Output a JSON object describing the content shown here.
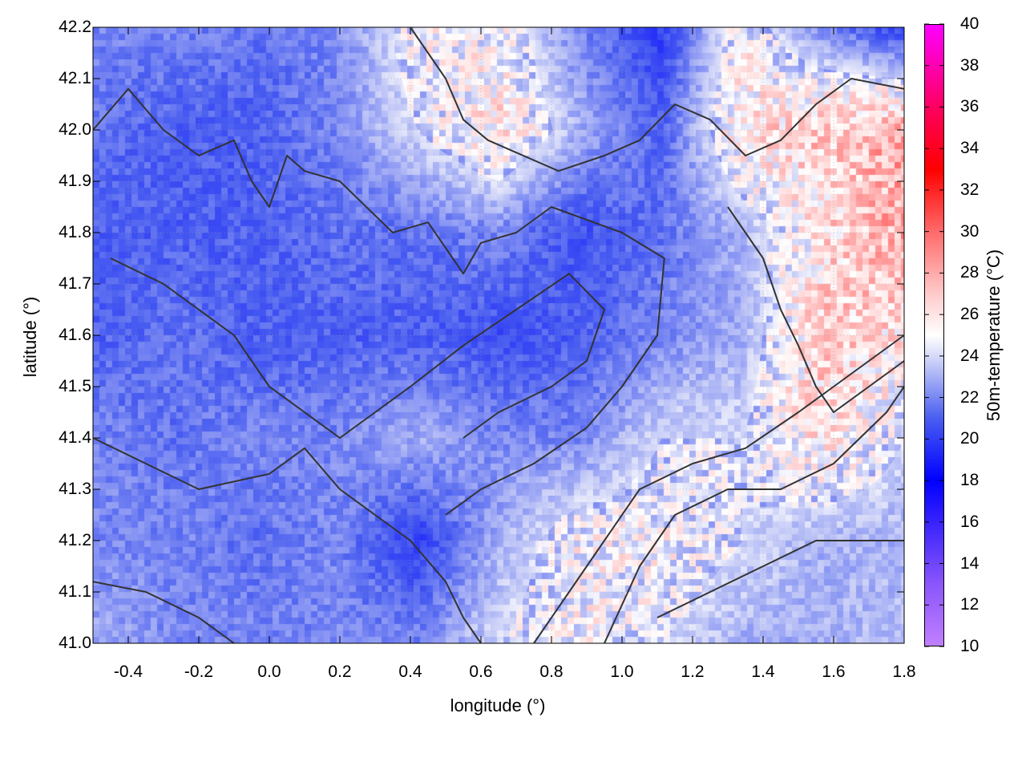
{
  "chart_data": {
    "type": "heatmap",
    "xlabel": "longitude (°)",
    "ylabel": "latitude (°)",
    "colorbar_label": "50m-temperature (°C)",
    "xlim": [
      -0.5,
      1.8
    ],
    "ylim": [
      41.0,
      42.2
    ],
    "clim": [
      10,
      40
    ],
    "grid": true,
    "xticks": [
      "-0.4",
      "-0.2",
      "0.0",
      "0.2",
      "0.4",
      "0.6",
      "0.8",
      "1.0",
      "1.2",
      "1.4",
      "1.6",
      "1.8"
    ],
    "xtick_values": [
      -0.4,
      -0.2,
      0,
      0.2,
      0.4,
      0.6,
      0.8,
      1.0,
      1.2,
      1.4,
      1.6,
      1.8
    ],
    "yticks": [
      "41.0",
      "41.1",
      "41.2",
      "41.3",
      "41.4",
      "41.5",
      "41.6",
      "41.7",
      "41.8",
      "41.9",
      "42.0",
      "42.1",
      "42.2"
    ],
    "ytick_values": [
      41.0,
      41.1,
      41.2,
      41.3,
      41.4,
      41.5,
      41.6,
      41.7,
      41.8,
      41.9,
      42.0,
      42.1,
      42.2
    ],
    "cticks": [
      "10",
      "12",
      "14",
      "16",
      "18",
      "20",
      "22",
      "24",
      "26",
      "28",
      "30",
      "32",
      "34",
      "36",
      "38",
      "40"
    ],
    "ctick_values": [
      10,
      12,
      14,
      16,
      18,
      20,
      22,
      24,
      26,
      28,
      30,
      32,
      34,
      36,
      38,
      40
    ],
    "colormap": [
      [
        10,
        "#c080ff"
      ],
      [
        13,
        "#8a55fb"
      ],
      [
        18,
        "#0000ff"
      ],
      [
        21,
        "#4a5ef0"
      ],
      [
        24,
        "#d6daf8"
      ],
      [
        25,
        "#ffffff"
      ],
      [
        27,
        "#ffcaca"
      ],
      [
        30,
        "#ff6a6a"
      ],
      [
        33,
        "#ff0000"
      ],
      [
        36,
        "#ff0060"
      ],
      [
        40,
        "#ff00ff"
      ]
    ],
    "grid_lon": [
      -0.5,
      -0.27,
      -0.04,
      0.19,
      0.42,
      0.65,
      0.88,
      1.11,
      1.34,
      1.57,
      1.8
    ],
    "grid_lat": [
      42.2,
      42.0,
      41.8,
      41.6,
      41.4,
      41.2,
      41.0
    ],
    "values": [
      [
        22,
        22,
        21.5,
        22,
        25,
        25,
        22,
        20,
        25,
        22,
        20
      ],
      [
        21.5,
        21,
        21,
        22,
        24,
        26,
        23,
        21,
        26,
        27,
        28
      ],
      [
        21,
        21,
        21,
        21.5,
        21.5,
        22,
        20.5,
        21.5,
        23,
        26,
        28
      ],
      [
        21,
        21.5,
        21,
        21,
        21,
        20.5,
        21,
        22,
        23,
        27,
        26
      ],
      [
        22,
        21.5,
        22,
        22,
        23,
        22,
        22,
        24,
        24,
        26,
        24
      ],
      [
        22,
        22,
        21.5,
        22,
        20,
        23,
        25,
        25,
        24,
        23,
        23
      ],
      [
        23,
        22,
        22,
        22,
        22,
        24,
        25,
        24,
        23,
        23,
        23.5
      ]
    ],
    "contours": [
      [
        [
          -0.5,
          42.0
        ],
        [
          -0.4,
          42.08
        ],
        [
          -0.3,
          42.0
        ],
        [
          -0.2,
          41.95
        ],
        [
          -0.1,
          41.98
        ],
        [
          -0.05,
          41.9
        ],
        [
          0.0,
          41.85
        ],
        [
          0.05,
          41.95
        ],
        [
          0.1,
          41.92
        ],
        [
          0.2,
          41.9
        ],
        [
          0.35,
          41.8
        ],
        [
          0.45,
          41.82
        ],
        [
          0.55,
          41.72
        ],
        [
          0.6,
          41.78
        ],
        [
          0.7,
          41.8
        ],
        [
          0.8,
          41.85
        ],
        [
          1.0,
          41.8
        ],
        [
          1.12,
          41.75
        ],
        [
          1.1,
          41.6
        ],
        [
          1.0,
          41.5
        ],
        [
          0.9,
          41.42
        ],
        [
          0.75,
          41.35
        ],
        [
          0.6,
          41.3
        ],
        [
          0.5,
          41.25
        ]
      ],
      [
        [
          -0.45,
          41.75
        ],
        [
          -0.3,
          41.7
        ],
        [
          -0.2,
          41.65
        ],
        [
          -0.1,
          41.6
        ],
        [
          0.0,
          41.5
        ],
        [
          0.1,
          41.45
        ],
        [
          0.2,
          41.4
        ],
        [
          0.3,
          41.45
        ],
        [
          0.4,
          41.5
        ],
        [
          0.55,
          41.58
        ],
        [
          0.7,
          41.65
        ],
        [
          0.85,
          41.72
        ],
        [
          0.95,
          41.65
        ],
        [
          0.9,
          41.55
        ],
        [
          0.8,
          41.5
        ],
        [
          0.65,
          41.45
        ],
        [
          0.55,
          41.4
        ]
      ],
      [
        [
          -0.5,
          41.4
        ],
        [
          -0.35,
          41.35
        ],
        [
          -0.2,
          41.3
        ],
        [
          0.0,
          41.33
        ],
        [
          0.1,
          41.38
        ],
        [
          0.2,
          41.3
        ],
        [
          0.3,
          41.25
        ],
        [
          0.4,
          41.2
        ],
        [
          0.5,
          41.12
        ],
        [
          0.55,
          41.05
        ],
        [
          0.6,
          41.0
        ]
      ],
      [
        [
          -0.5,
          41.12
        ],
        [
          -0.35,
          41.1
        ],
        [
          -0.2,
          41.05
        ],
        [
          -0.1,
          41.0
        ]
      ],
      [
        [
          0.75,
          41.0
        ],
        [
          0.85,
          41.1
        ],
        [
          0.95,
          41.2
        ],
        [
          1.05,
          41.3
        ],
        [
          1.2,
          41.35
        ],
        [
          1.35,
          41.38
        ],
        [
          1.5,
          41.45
        ],
        [
          1.6,
          41.5
        ],
        [
          1.7,
          41.55
        ],
        [
          1.8,
          41.6
        ]
      ],
      [
        [
          0.95,
          41.0
        ],
        [
          1.05,
          41.15
        ],
        [
          1.15,
          41.25
        ],
        [
          1.3,
          41.3
        ],
        [
          1.45,
          41.3
        ],
        [
          1.6,
          41.35
        ],
        [
          1.75,
          41.45
        ],
        [
          1.8,
          41.5
        ]
      ],
      [
        [
          1.1,
          41.05
        ],
        [
          1.25,
          41.1
        ],
        [
          1.4,
          41.15
        ],
        [
          1.55,
          41.2
        ],
        [
          1.7,
          41.2
        ],
        [
          1.8,
          41.2
        ]
      ],
      [
        [
          0.4,
          42.2
        ],
        [
          0.5,
          42.1
        ],
        [
          0.55,
          42.02
        ],
        [
          0.62,
          41.98
        ],
        [
          0.72,
          41.95
        ],
        [
          0.82,
          41.92
        ],
        [
          0.95,
          41.95
        ],
        [
          1.05,
          41.98
        ],
        [
          1.15,
          42.05
        ],
        [
          1.25,
          42.02
        ],
        [
          1.35,
          41.95
        ],
        [
          1.45,
          41.98
        ],
        [
          1.55,
          42.05
        ],
        [
          1.65,
          42.1
        ],
        [
          1.8,
          42.08
        ]
      ],
      [
        [
          1.3,
          41.85
        ],
        [
          1.4,
          41.75
        ],
        [
          1.45,
          41.65
        ],
        [
          1.5,
          41.58
        ],
        [
          1.55,
          41.5
        ],
        [
          1.6,
          41.45
        ],
        [
          1.7,
          41.5
        ],
        [
          1.8,
          41.55
        ]
      ]
    ]
  }
}
